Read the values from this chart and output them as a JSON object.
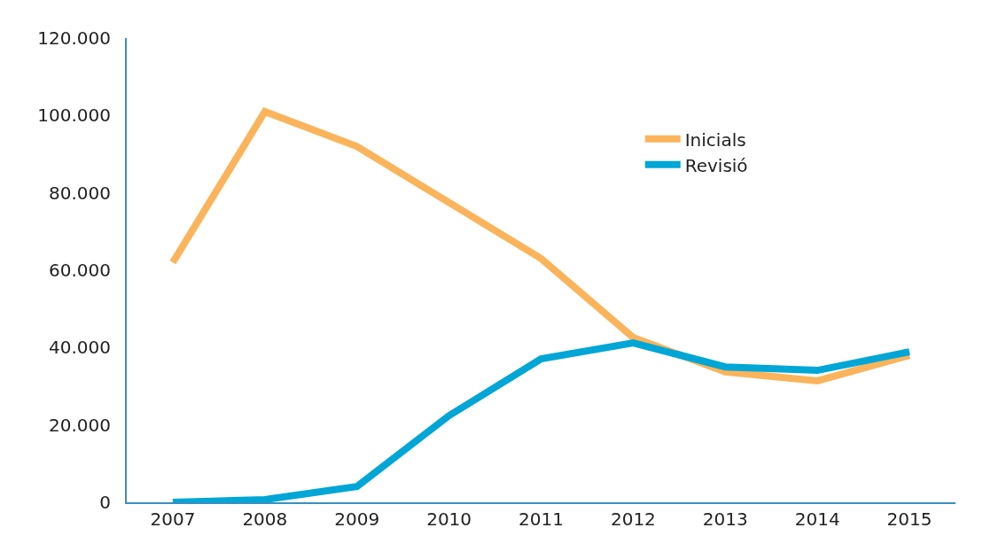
{
  "chart_data": {
    "type": "line",
    "categories": [
      "2007",
      "2008",
      "2009",
      "2010",
      "2011",
      "2012",
      "2013",
      "2014",
      "2015"
    ],
    "series": [
      {
        "name": "Inicials",
        "color": "#fbb45b",
        "values": [
          62000,
          101000,
          92000,
          77500,
          63000,
          42600,
          33700,
          31400,
          38000
        ]
      },
      {
        "name": "Revisió",
        "color": "#00a6d6",
        "values": [
          0,
          700,
          4100,
          22400,
          37100,
          41200,
          35000,
          34100,
          38900
        ]
      }
    ],
    "ylim": [
      0,
      120000
    ],
    "yticks": [
      0,
      {
        "value": 20000,
        "label": "20.000"
      },
      {
        "value": 40000,
        "label": "40.000"
      },
      {
        "value": 60000,
        "label": "60.000"
      },
      {
        "value": 80000,
        "label": "80.000"
      },
      {
        "value": 100000,
        "label": "100.000"
      },
      {
        "value": 120000,
        "label": "120.000"
      }
    ],
    "legend": "top right",
    "marker": "none",
    "line_style": "solid"
  }
}
